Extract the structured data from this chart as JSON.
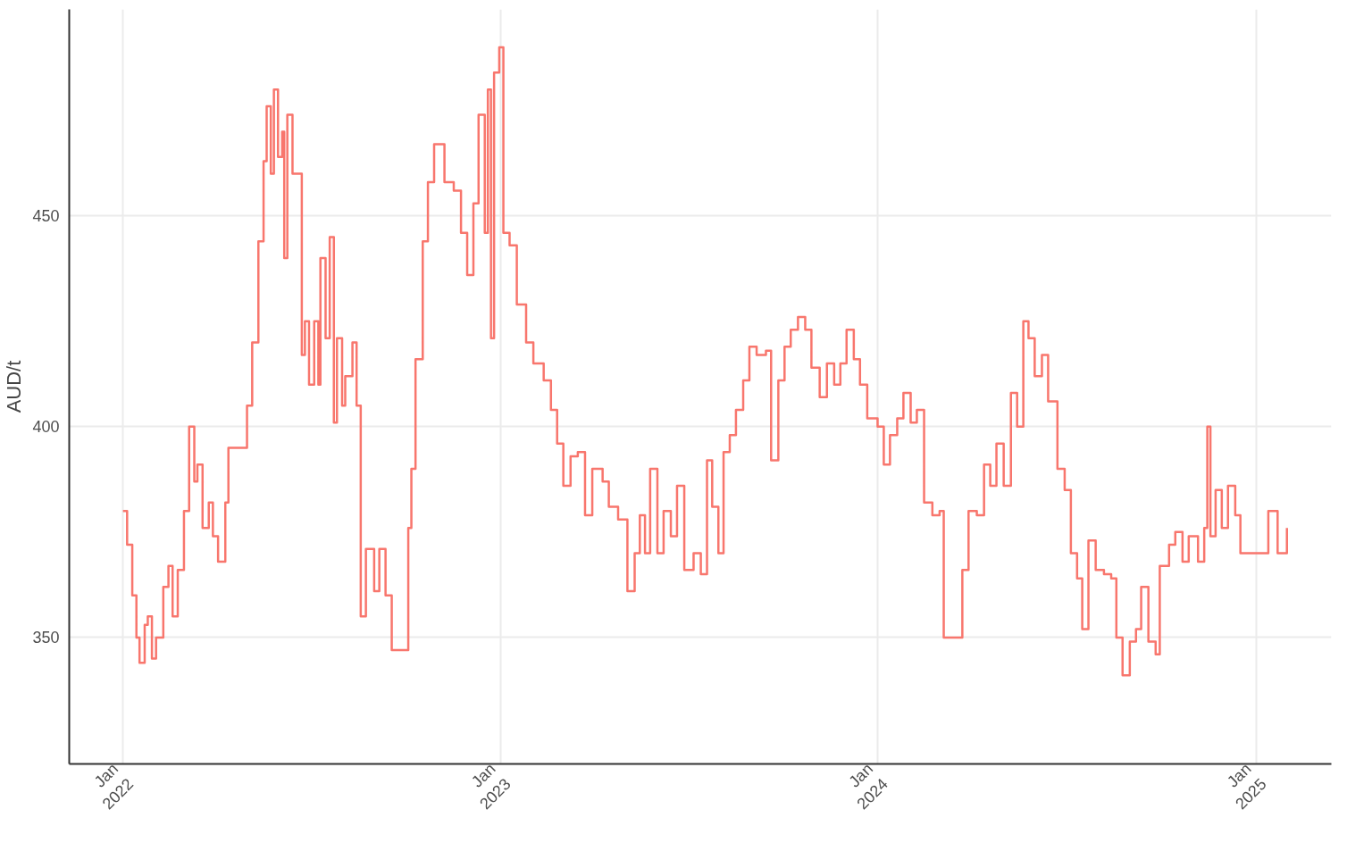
{
  "chart_data": {
    "type": "step",
    "ylabel": "AUD/t",
    "xlim": [
      "2021-11-10",
      "2025-03-15"
    ],
    "ylim": [
      320,
      499
    ],
    "xticks": [
      {
        "value": "2022-01-01",
        "label": "Jan\n2022"
      },
      {
        "value": "2023-01-01",
        "label": "Jan\n2023"
      },
      {
        "value": "2024-01-01",
        "label": "Jan\n2024"
      },
      {
        "value": "2025-01-01",
        "label": "Jan\n2025"
      }
    ],
    "yticks": [
      350,
      400,
      450
    ],
    "grid": true,
    "line_style": "solid",
    "x": [
      "2022-01-01",
      "2022-01-05",
      "2022-01-10",
      "2022-01-14",
      "2022-01-17",
      "2022-01-22",
      "2022-01-25",
      "2022-01-29",
      "2022-02-02",
      "2022-02-09",
      "2022-02-14",
      "2022-02-18",
      "2022-02-23",
      "2022-03-01",
      "2022-03-06",
      "2022-03-11",
      "2022-03-14",
      "2022-03-19",
      "2022-03-25",
      "2022-03-29",
      "2022-04-03",
      "2022-04-10",
      "2022-04-13",
      "2022-04-24",
      "2022-05-01",
      "2022-05-06",
      "2022-05-12",
      "2022-05-17",
      "2022-05-20",
      "2022-05-24",
      "2022-05-27",
      "2022-05-31",
      "2022-06-04",
      "2022-06-06",
      "2022-06-09",
      "2022-06-14",
      "2022-06-20",
      "2022-06-23",
      "2022-06-26",
      "2022-06-30",
      "2022-07-05",
      "2022-07-09",
      "2022-07-11",
      "2022-07-16",
      "2022-07-20",
      "2022-07-24",
      "2022-07-27",
      "2022-08-01",
      "2022-08-04",
      "2022-08-11",
      "2022-08-15",
      "2022-08-19",
      "2022-08-24",
      "2022-09-01",
      "2022-09-06",
      "2022-09-12",
      "2022-09-18",
      "2022-09-30",
      "2022-10-04",
      "2022-10-07",
      "2022-10-11",
      "2022-10-18",
      "2022-10-23",
      "2022-10-29",
      "2022-11-08",
      "2022-11-17",
      "2022-11-24",
      "2022-11-30",
      "2022-12-06",
      "2022-12-11",
      "2022-12-17",
      "2022-12-20",
      "2022-12-23",
      "2022-12-26",
      "2022-12-31",
      "2023-01-04",
      "2023-01-10",
      "2023-01-17",
      "2023-01-26",
      "2023-02-02",
      "2023-02-12",
      "2023-02-19",
      "2023-02-25",
      "2023-03-03",
      "2023-03-10",
      "2023-03-17",
      "2023-03-24",
      "2023-03-31",
      "2023-04-10",
      "2023-04-16",
      "2023-04-25",
      "2023-05-04",
      "2023-05-11",
      "2023-05-16",
      "2023-05-21",
      "2023-05-26",
      "2023-06-02",
      "2023-06-08",
      "2023-06-15",
      "2023-06-21",
      "2023-06-28",
      "2023-07-07",
      "2023-07-14",
      "2023-07-20",
      "2023-07-25",
      "2023-07-31",
      "2023-08-05",
      "2023-08-11",
      "2023-08-17",
      "2023-08-24",
      "2023-08-30",
      "2023-09-06",
      "2023-09-15",
      "2023-09-20",
      "2023-09-27",
      "2023-10-03",
      "2023-10-09",
      "2023-10-16",
      "2023-10-23",
      "2023-10-29",
      "2023-11-06",
      "2023-11-13",
      "2023-11-20",
      "2023-11-26",
      "2023-12-02",
      "2023-12-09",
      "2023-12-15",
      "2023-12-22",
      "2024-01-01",
      "2024-01-07",
      "2024-01-13",
      "2024-01-20",
      "2024-01-26",
      "2024-02-02",
      "2024-02-08",
      "2024-02-15",
      "2024-02-23",
      "2024-03-01",
      "2024-03-05",
      "2024-03-17",
      "2024-03-23",
      "2024-03-29",
      "2024-04-06",
      "2024-04-13",
      "2024-04-19",
      "2024-04-25",
      "2024-05-02",
      "2024-05-09",
      "2024-05-15",
      "2024-05-21",
      "2024-05-26",
      "2024-06-01",
      "2024-06-08",
      "2024-06-14",
      "2024-06-23",
      "2024-06-30",
      "2024-07-06",
      "2024-07-12",
      "2024-07-17",
      "2024-07-23",
      "2024-07-30",
      "2024-08-07",
      "2024-08-14",
      "2024-08-19",
      "2024-08-25",
      "2024-09-01",
      "2024-09-07",
      "2024-09-12",
      "2024-09-19",
      "2024-09-26",
      "2024-09-30",
      "2024-10-09",
      "2024-10-15",
      "2024-10-22",
      "2024-10-28",
      "2024-11-06",
      "2024-11-12",
      "2024-11-15",
      "2024-11-18",
      "2024-11-23",
      "2024-11-29",
      "2024-12-05",
      "2024-12-12",
      "2024-12-17",
      "2025-01-03",
      "2025-01-13",
      "2025-01-22",
      "2025-01-31"
    ],
    "series": [
      {
        "color": "#f8766d",
        "values": [
          380,
          372,
          360,
          350,
          344,
          353,
          355,
          345,
          350,
          362,
          367,
          355,
          366,
          380,
          400,
          387,
          391,
          376,
          382,
          374,
          368,
          382,
          395,
          395,
          405,
          420,
          444,
          463,
          476,
          460,
          480,
          464,
          470,
          440,
          474,
          460,
          460,
          417,
          425,
          410,
          425,
          410,
          440,
          421,
          445,
          401,
          421,
          405,
          412,
          420,
          405,
          355,
          371,
          361,
          371,
          360,
          347,
          347,
          376,
          390,
          416,
          444,
          458,
          467,
          458,
          456,
          446,
          436,
          453,
          474,
          446,
          480,
          421,
          484,
          490,
          446,
          443,
          429,
          420,
          415,
          411,
          404,
          396,
          386,
          393,
          394,
          379,
          390,
          387,
          381,
          378,
          361,
          370,
          379,
          370,
          390,
          370,
          380,
          374,
          386,
          366,
          370,
          365,
          392,
          381,
          370,
          394,
          398,
          404,
          411,
          419,
          417,
          418,
          392,
          411,
          419,
          423,
          426,
          423,
          414,
          407,
          415,
          410,
          415,
          423,
          416,
          410,
          402,
          400,
          391,
          398,
          402,
          408,
          401,
          404,
          382,
          379,
          380,
          350,
          350,
          366,
          380,
          379,
          391,
          386,
          396,
          386,
          408,
          400,
          425,
          421,
          412,
          417,
          406,
          390,
          385,
          370,
          364,
          352,
          373,
          366,
          365,
          364,
          350,
          341,
          349,
          352,
          362,
          349,
          346,
          367,
          372,
          375,
          368,
          374,
          368,
          376,
          400,
          374,
          385,
          376,
          386,
          379,
          370,
          370,
          380,
          370,
          376
        ]
      }
    ]
  }
}
